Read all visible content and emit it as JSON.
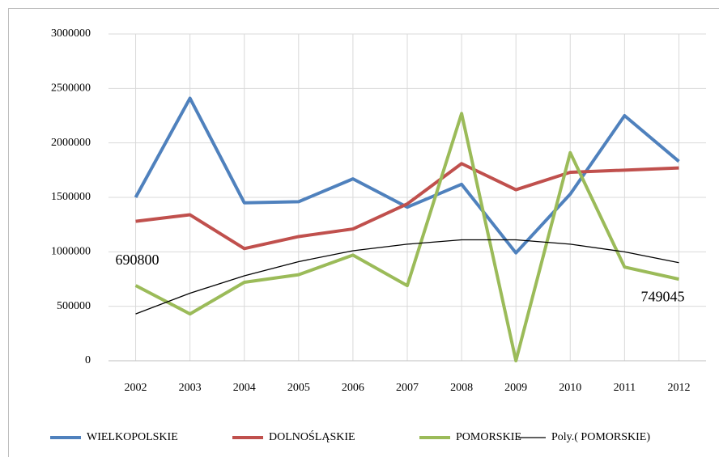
{
  "chart_data": {
    "type": "line",
    "categories": [
      "2002",
      "2003",
      "2004",
      "2005",
      "2006",
      "2007",
      "2008",
      "2009",
      "2010",
      "2011",
      "2012"
    ],
    "series": [
      {
        "name": "WIELKOPOLSKIE",
        "color": "#4f81bd",
        "values": [
          1500000,
          2410000,
          1450000,
          1460000,
          1670000,
          1410000,
          1620000,
          990000,
          1530000,
          2250000,
          1830000
        ]
      },
      {
        "name": "DOLNOŚLĄSKIE",
        "color": "#c0504d",
        "values": [
          1280000,
          1340000,
          1030000,
          1140000,
          1210000,
          1440000,
          1810000,
          1570000,
          1730000,
          1750000,
          1770000
        ]
      },
      {
        "name": "POMORSKIE",
        "color": "#9bbb59",
        "values": [
          690800,
          430000,
          720000,
          790000,
          970000,
          690000,
          2270000,
          0,
          1910000,
          860000,
          749045
        ]
      },
      {
        "name": "Poly.( POMORSKIE)",
        "color": "#000000",
        "values": [
          430000,
          620000,
          780000,
          910000,
          1010000,
          1070000,
          1110000,
          1110000,
          1070000,
          1000000,
          900000
        ]
      }
    ],
    "ylim": [
      0,
      3000000
    ],
    "yticks": [
      0,
      500000,
      1000000,
      1500000,
      2000000,
      2500000,
      3000000
    ],
    "grid": true,
    "legend": "bottom"
  }
}
